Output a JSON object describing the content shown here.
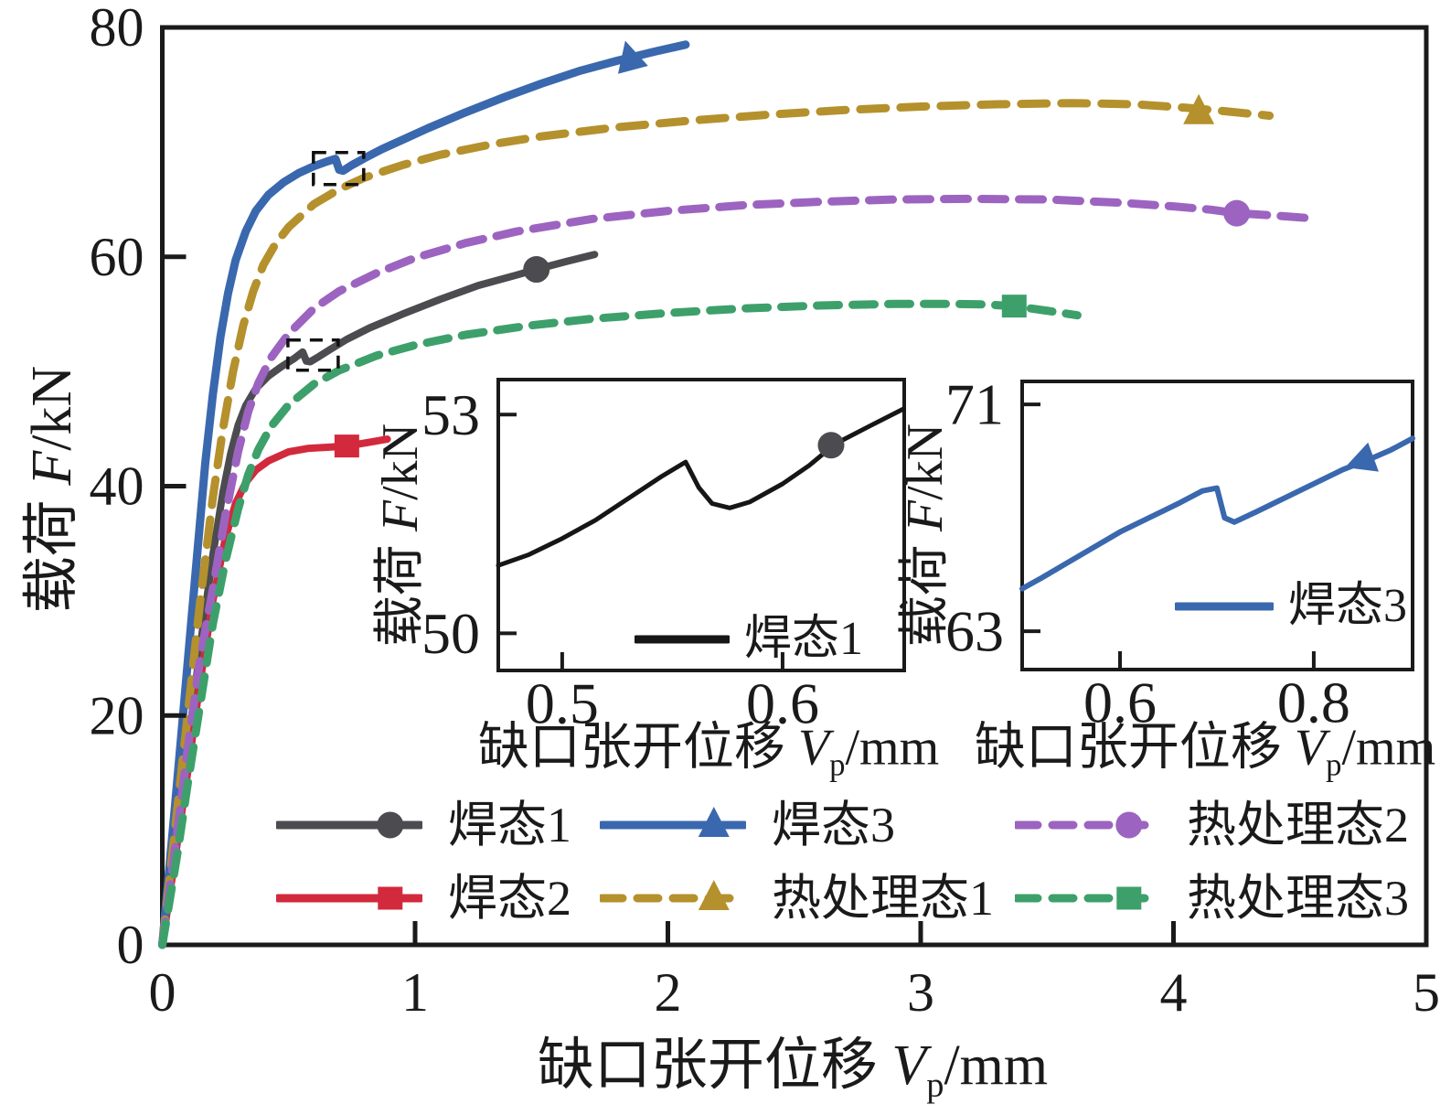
{
  "colors": {
    "axis": "#1a1a1a",
    "background": "#ffffff"
  },
  "chart_data": {
    "main": {
      "type": "line",
      "xlabel": {
        "prefix": "缺口张开位移 ",
        "var": "V",
        "sub": "p",
        "unit": "/mm"
      },
      "ylabel": {
        "prefix": "载荷 ",
        "var": "F",
        "unit": "/kN"
      },
      "xlim": [
        0,
        5
      ],
      "ylim": [
        0,
        80
      ],
      "x_tick_labels": [
        "0",
        "1",
        "2",
        "3",
        "4",
        "5"
      ],
      "y_tick_labels": [
        "0",
        "20",
        "40",
        "60",
        "80"
      ],
      "grid": "off",
      "series": [
        {
          "key": "hantai1",
          "name": "焊态1",
          "color": "#4b4b50",
          "style": "solid",
          "width": 8,
          "dash": "",
          "marker": "circle",
          "marker_at": [
            1.48,
            58.9
          ],
          "points": [
            [
              0,
              0
            ],
            [
              0.06,
              10
            ],
            [
              0.1,
              17
            ],
            [
              0.15,
              26
            ],
            [
              0.2,
              34
            ],
            [
              0.24,
              39.5
            ],
            [
              0.27,
              42.8
            ],
            [
              0.3,
              45.3
            ],
            [
              0.33,
              47
            ],
            [
              0.37,
              48.5
            ],
            [
              0.42,
              49.6
            ],
            [
              0.47,
              50.4
            ],
            [
              0.52,
              51.1
            ],
            [
              0.555,
              51.7
            ],
            [
              0.57,
              50.9
            ],
            [
              0.585,
              50.85
            ],
            [
              0.62,
              51.3
            ],
            [
              0.67,
              52
            ],
            [
              0.73,
              52.8
            ],
            [
              0.82,
              53.8
            ],
            [
              0.95,
              55
            ],
            [
              1.1,
              56.3
            ],
            [
              1.25,
              57.5
            ],
            [
              1.4,
              58.4
            ],
            [
              1.48,
              58.9
            ],
            [
              1.6,
              59.6
            ],
            [
              1.71,
              60.2
            ]
          ]
        },
        {
          "key": "hantai2",
          "name": "焊态2",
          "color": "#d3293d",
          "style": "solid",
          "width": 8,
          "dash": "",
          "marker": "square",
          "marker_at": [
            0.73,
            43.5
          ],
          "points": [
            [
              0,
              0
            ],
            [
              0.06,
              9
            ],
            [
              0.1,
              15
            ],
            [
              0.15,
              23
            ],
            [
              0.2,
              30
            ],
            [
              0.25,
              35.5
            ],
            [
              0.29,
              38.5
            ],
            [
              0.33,
              40.3
            ],
            [
              0.37,
              41.4
            ],
            [
              0.42,
              42.2
            ],
            [
              0.5,
              43
            ],
            [
              0.58,
              43.3
            ],
            [
              0.66,
              43.4
            ],
            [
              0.73,
              43.5
            ],
            [
              0.81,
              43.8
            ],
            [
              0.89,
              44.1
            ]
          ]
        },
        {
          "key": "hantai3",
          "name": "焊态3",
          "color": "#3a68ae",
          "style": "solid",
          "width": 9,
          "dash": "",
          "marker": "triangle",
          "marker_rot": -15,
          "marker_at": [
            1.85,
            77.3
          ],
          "points": [
            [
              0,
              0
            ],
            [
              0.05,
              12
            ],
            [
              0.09,
              22
            ],
            [
              0.13,
              32
            ],
            [
              0.17,
              42
            ],
            [
              0.2,
              48
            ],
            [
              0.23,
              53
            ],
            [
              0.26,
              56.8
            ],
            [
              0.29,
              59.7
            ],
            [
              0.33,
              62.2
            ],
            [
              0.37,
              64
            ],
            [
              0.42,
              65.4
            ],
            [
              0.48,
              66.5
            ],
            [
              0.54,
              67.3
            ],
            [
              0.6,
              67.9
            ],
            [
              0.65,
              68.3
            ],
            [
              0.685,
              68.55
            ],
            [
              0.7,
              67.6
            ],
            [
              0.715,
              67.5
            ],
            [
              0.75,
              68
            ],
            [
              0.8,
              68.6
            ],
            [
              0.87,
              69.4
            ],
            [
              0.95,
              70.2
            ],
            [
              1.05,
              71.2
            ],
            [
              1.2,
              72.6
            ],
            [
              1.35,
              73.9
            ],
            [
              1.5,
              75.1
            ],
            [
              1.65,
              76.2
            ],
            [
              1.8,
              77.1
            ],
            [
              1.95,
              77.9
            ],
            [
              2.07,
              78.5
            ]
          ]
        },
        {
          "key": "rechuli1",
          "name": "热处理态1",
          "color": "#b4912d",
          "style": "dashed",
          "width": 9,
          "dash": "28 16",
          "marker": "triangle",
          "marker_at": [
            4.1,
            72.6
          ],
          "points": [
            [
              0,
              0
            ],
            [
              0.06,
              12
            ],
            [
              0.1,
              20
            ],
            [
              0.15,
              30
            ],
            [
              0.2,
              39
            ],
            [
              0.24,
              45
            ],
            [
              0.28,
              50
            ],
            [
              0.32,
              54
            ],
            [
              0.36,
              57
            ],
            [
              0.4,
              59.3
            ],
            [
              0.45,
              61.2
            ],
            [
              0.5,
              62.6
            ],
            [
              0.6,
              64.6
            ],
            [
              0.7,
              65.9
            ],
            [
              0.8,
              66.9
            ],
            [
              0.95,
              68
            ],
            [
              1.1,
              68.9
            ],
            [
              1.3,
              69.8
            ],
            [
              1.5,
              70.5
            ],
            [
              1.8,
              71.3
            ],
            [
              2.1,
              71.9
            ],
            [
              2.4,
              72.4
            ],
            [
              2.7,
              72.8
            ],
            [
              3,
              73.1
            ],
            [
              3.3,
              73.3
            ],
            [
              3.6,
              73.4
            ],
            [
              3.85,
              73.3
            ],
            [
              4.05,
              73
            ],
            [
              4.2,
              72.7
            ],
            [
              4.38,
              72.3
            ]
          ]
        },
        {
          "key": "rechuli2",
          "name": "热处理态2",
          "color": "#9c64c0",
          "style": "dashed",
          "width": 9,
          "dash": "26 15",
          "marker": "circle",
          "marker_at": [
            4.25,
            63.8
          ],
          "points": [
            [
              0,
              0
            ],
            [
              0.06,
              10
            ],
            [
              0.1,
              17
            ],
            [
              0.15,
              25
            ],
            [
              0.2,
              31
            ],
            [
              0.25,
              37.5
            ],
            [
              0.3,
              43
            ],
            [
              0.34,
              46.5
            ],
            [
              0.38,
              49
            ],
            [
              0.43,
              51.2
            ],
            [
              0.5,
              53.3
            ],
            [
              0.6,
              55.5
            ],
            [
              0.7,
              57
            ],
            [
              0.85,
              58.6
            ],
            [
              1,
              59.9
            ],
            [
              1.2,
              61.2
            ],
            [
              1.4,
              62.2
            ],
            [
              1.7,
              63.3
            ],
            [
              2,
              64
            ],
            [
              2.3,
              64.5
            ],
            [
              2.6,
              64.8
            ],
            [
              2.9,
              65
            ],
            [
              3.2,
              65.05
            ],
            [
              3.5,
              65
            ],
            [
              3.8,
              64.7
            ],
            [
              4,
              64.4
            ],
            [
              4.15,
              64.1
            ],
            [
              4.25,
              63.8
            ],
            [
              4.4,
              63.6
            ],
            [
              4.52,
              63.4
            ]
          ]
        },
        {
          "key": "rechuli3",
          "name": "热处理态3",
          "color": "#3da06b",
          "style": "dashed",
          "width": 9,
          "dash": "24 15",
          "marker": "square",
          "marker_at": [
            3.37,
            55.7
          ],
          "points": [
            [
              0,
              0
            ],
            [
              0.06,
              8
            ],
            [
              0.1,
              14
            ],
            [
              0.15,
              21
            ],
            [
              0.2,
              28
            ],
            [
              0.25,
              33.5
            ],
            [
              0.3,
              38
            ],
            [
              0.34,
              41
            ],
            [
              0.38,
              43.2
            ],
            [
              0.43,
              45.2
            ],
            [
              0.5,
              47.1
            ],
            [
              0.6,
              48.9
            ],
            [
              0.7,
              50.1
            ],
            [
              0.85,
              51.4
            ],
            [
              1,
              52.3
            ],
            [
              1.2,
              53.2
            ],
            [
              1.45,
              54
            ],
            [
              1.7,
              54.6
            ],
            [
              2,
              55.1
            ],
            [
              2.3,
              55.5
            ],
            [
              2.6,
              55.75
            ],
            [
              2.9,
              55.9
            ],
            [
              3.1,
              55.9
            ],
            [
              3.25,
              55.85
            ],
            [
              3.37,
              55.7
            ],
            [
              3.5,
              55.3
            ],
            [
              3.62,
              54.9
            ]
          ]
        }
      ],
      "popin_boxes": [
        {
          "x": [
            0.497,
            0.696
          ],
          "f": [
            50.11,
            52.74
          ]
        },
        {
          "x": [
            0.598,
            0.797
          ],
          "f": [
            66.3,
            69.1
          ]
        }
      ]
    },
    "inset1": {
      "type": "line",
      "xlabel": {
        "prefix": "缺口张开位移 ",
        "var": "V",
        "sub": "p",
        "unit": "/mm"
      },
      "ylabel": {
        "prefix": "载荷 ",
        "var": "F",
        "unit": "/kN"
      },
      "xlim": [
        0.471,
        0.6552
      ],
      "ylim": [
        49.49,
        53.48
      ],
      "x_tick_labels": [
        "0.5",
        "0.6"
      ],
      "y_tick_labels": [
        "50",
        "53"
      ],
      "legend_label": "焊态1",
      "series": [
        {
          "key": "inset1-hantai1",
          "name": "焊态1",
          "color": "#161616",
          "style": "solid",
          "width": 5,
          "dash": "",
          "marker": "circle",
          "marker_color": "#4b4b50",
          "marker_at": [
            0.622,
            52.58
          ],
          "points": [
            [
              0.471,
              50.93
            ],
            [
              0.485,
              51.08
            ],
            [
              0.5,
              51.3
            ],
            [
              0.515,
              51.55
            ],
            [
              0.53,
              51.85
            ],
            [
              0.545,
              52.15
            ],
            [
              0.556,
              52.35
            ],
            [
              0.562,
              52
            ],
            [
              0.568,
              51.78
            ],
            [
              0.576,
              51.72
            ],
            [
              0.585,
              51.8
            ],
            [
              0.6,
              52.05
            ],
            [
              0.612,
              52.3
            ],
            [
              0.624,
              52.6
            ],
            [
              0.64,
              52.85
            ],
            [
              0.655,
              53.08
            ]
          ]
        }
      ]
    },
    "inset2": {
      "type": "line",
      "xlabel": {
        "prefix": "缺口张开位移 ",
        "var": "V",
        "sub": "p",
        "unit": "/mm"
      },
      "ylabel": {
        "prefix": "载荷 ",
        "var": "F",
        "unit": "/kN"
      },
      "xlim": [
        0.499,
        0.902
      ],
      "ylim": [
        61.65,
        71.81
      ],
      "x_tick_labels": [
        "0.6",
        "0.8"
      ],
      "y_tick_labels": [
        "63",
        "71"
      ],
      "legend_label": "焊态3",
      "series": [
        {
          "key": "inset2-hantai3",
          "name": "焊态3",
          "color": "#3a68ae",
          "style": "solid",
          "width": 6,
          "dash": "",
          "marker": "arrow",
          "marker_rot": -110,
          "marker_at": [
            0.85,
            69.0
          ],
          "points": [
            [
              0.499,
              64.5
            ],
            [
              0.52,
              64.9
            ],
            [
              0.545,
              65.4
            ],
            [
              0.57,
              65.9
            ],
            [
              0.6,
              66.5
            ],
            [
              0.63,
              67
            ],
            [
              0.66,
              67.5
            ],
            [
              0.685,
              67.95
            ],
            [
              0.7,
              68.05
            ],
            [
              0.708,
              67
            ],
            [
              0.718,
              66.85
            ],
            [
              0.74,
              67.2
            ],
            [
              0.77,
              67.7
            ],
            [
              0.8,
              68.2
            ],
            [
              0.83,
              68.7
            ],
            [
              0.86,
              69.1
            ],
            [
              0.88,
              69.4
            ],
            [
              0.902,
              69.8
            ]
          ]
        }
      ]
    }
  },
  "legend": {
    "items": [
      {
        "series": "hantai1",
        "label": "焊态1"
      },
      {
        "series": "hantai2",
        "label": "焊态2"
      },
      {
        "series": "hantai3",
        "label": "焊态3"
      },
      {
        "series": "rechuli1",
        "label": "热处理态1"
      },
      {
        "series": "rechuli2",
        "label": "热处理态2"
      },
      {
        "series": "rechuli3",
        "label": "热处理态3"
      }
    ]
  }
}
